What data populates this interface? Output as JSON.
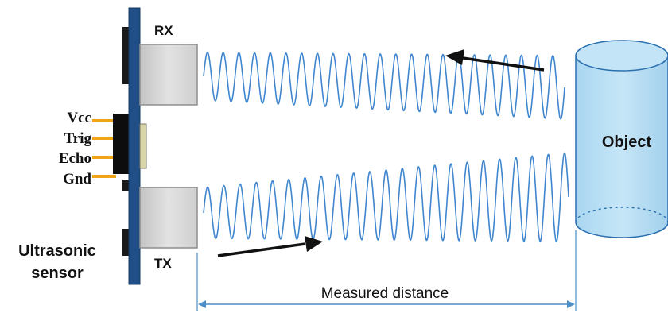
{
  "labels": {
    "rx": "RX",
    "tx": "TX",
    "pins": [
      "Vcc",
      "Trig",
      "Echo",
      "Gnd"
    ],
    "sensor_line1": "Ultrasonic",
    "sensor_line2": "sensor",
    "object": "Object",
    "distance": "Measured distance"
  },
  "colors": {
    "board": "#1f4f86",
    "transducer_face": "#d6d6d6",
    "transducer_edge": "#8e8e8e",
    "pin": "#f0a418",
    "wave": "#3f86cf",
    "cylinder_fill": "#b5ddf3",
    "cylinder_edge": "#2a6fb0",
    "dimension_line": "#4a8fc8",
    "arrow": "#111111",
    "text": "#111111"
  }
}
